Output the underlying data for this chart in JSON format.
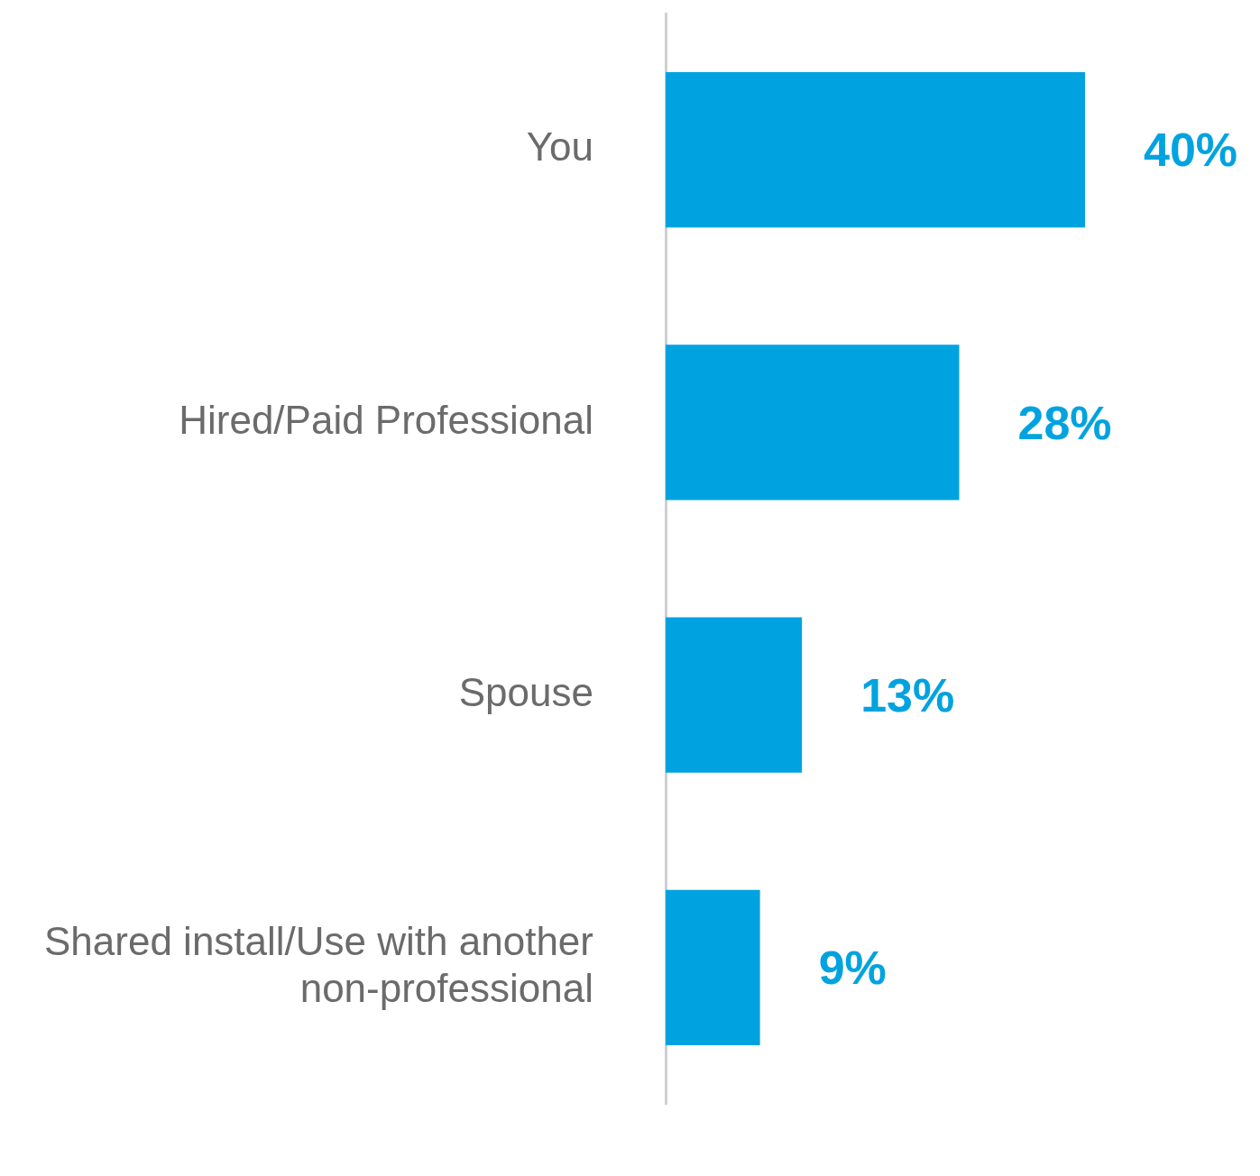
{
  "chart_data": {
    "type": "bar",
    "orientation": "horizontal",
    "categories": [
      "You",
      "Hired/Paid Professional",
      "Spouse",
      "Shared install/Use with another non-professional"
    ],
    "values": [
      40,
      28,
      13,
      9
    ],
    "value_labels": [
      "40%",
      "28%",
      "13%",
      "9%"
    ],
    "color": "#00a3e0",
    "tick_labels": "y",
    "legend": false
  }
}
